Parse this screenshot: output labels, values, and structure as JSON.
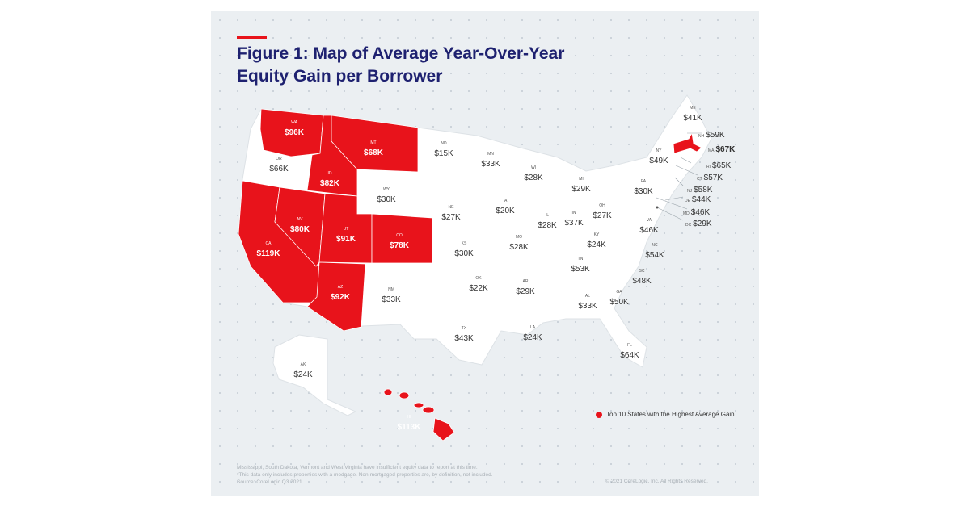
{
  "title": "Figure 1: Map of Average Year-Over-Year Equity Gain per Borrower",
  "highlight_color": "#e8131b",
  "states": [
    {
      "code": "WA",
      "value": "$96K",
      "top10": true
    },
    {
      "code": "OR",
      "value": "$66K",
      "top10": false
    },
    {
      "code": "CA",
      "value": "$119K",
      "top10": true
    },
    {
      "code": "ID",
      "value": "$82K",
      "top10": true
    },
    {
      "code": "NV",
      "value": "$80K",
      "top10": true
    },
    {
      "code": "MT",
      "value": "$68K",
      "top10": true
    },
    {
      "code": "WY",
      "value": "$30K",
      "top10": false
    },
    {
      "code": "UT",
      "value": "$91K",
      "top10": true
    },
    {
      "code": "CO",
      "value": "$78K",
      "top10": true
    },
    {
      "code": "AZ",
      "value": "$92K",
      "top10": true
    },
    {
      "code": "NM",
      "value": "$33K",
      "top10": false
    },
    {
      "code": "ND",
      "value": "$15K",
      "top10": false
    },
    {
      "code": "NE",
      "value": "$27K",
      "top10": false
    },
    {
      "code": "KS",
      "value": "$30K",
      "top10": false
    },
    {
      "code": "OK",
      "value": "$22K",
      "top10": false
    },
    {
      "code": "TX",
      "value": "$43K",
      "top10": false
    },
    {
      "code": "MN",
      "value": "$33K",
      "top10": false
    },
    {
      "code": "IA",
      "value": "$20K",
      "top10": false
    },
    {
      "code": "MO",
      "value": "$28K",
      "top10": false
    },
    {
      "code": "AR",
      "value": "$29K",
      "top10": false
    },
    {
      "code": "LA",
      "value": "$24K",
      "top10": false
    },
    {
      "code": "WI",
      "value": "$28K",
      "top10": false
    },
    {
      "code": "IL",
      "value": "$28K",
      "top10": false
    },
    {
      "code": "MI",
      "value": "$29K",
      "top10": false
    },
    {
      "code": "IN",
      "value": "$37K",
      "top10": false
    },
    {
      "code": "OH",
      "value": "$27K",
      "top10": false
    },
    {
      "code": "KY",
      "value": "$24K",
      "top10": false
    },
    {
      "code": "TN",
      "value": "$53K",
      "top10": false
    },
    {
      "code": "AL",
      "value": "$33K",
      "top10": false
    },
    {
      "code": "GA",
      "value": "$50K",
      "top10": false
    },
    {
      "code": "FL",
      "value": "$64K",
      "top10": false
    },
    {
      "code": "SC",
      "value": "$48K",
      "top10": false
    },
    {
      "code": "NC",
      "value": "$54K",
      "top10": false
    },
    {
      "code": "VA",
      "value": "$46K",
      "top10": false
    },
    {
      "code": "PA",
      "value": "$30K",
      "top10": false
    },
    {
      "code": "NY",
      "value": "$49K",
      "top10": false
    },
    {
      "code": "ME",
      "value": "$41K",
      "top10": false
    },
    {
      "code": "AK",
      "value": "$24K",
      "top10": false
    },
    {
      "code": "HI",
      "value": "$113K",
      "top10": true
    }
  ],
  "northeast_callouts": [
    {
      "code": "NH",
      "value": "$59K",
      "top10": false
    },
    {
      "code": "MA",
      "value": "$67K",
      "top10": true
    },
    {
      "code": "RI",
      "value": "$65K",
      "top10": false
    },
    {
      "code": "CT",
      "value": "$57K",
      "top10": false
    },
    {
      "code": "NJ",
      "value": "$58K",
      "top10": false
    },
    {
      "code": "DE",
      "value": "$44K",
      "top10": false
    },
    {
      "code": "MD",
      "value": "$46K",
      "top10": false
    },
    {
      "code": "DC",
      "value": "$29K",
      "top10": false
    }
  ],
  "legend": "Top 10 States with the Highest Average Gain",
  "notes": [
    "Mississippi, South Dakota, Vermont and West Virginia  have insufficient equity data to report at this time.",
    "*This data only includes properties with a modgage. Non-mortgaged properties are, by definition, not included.",
    "Source: CoreLogic Q3 2021"
  ],
  "copyright": "© 2021 CoreLogic, Inc. All Rights Reserved."
}
